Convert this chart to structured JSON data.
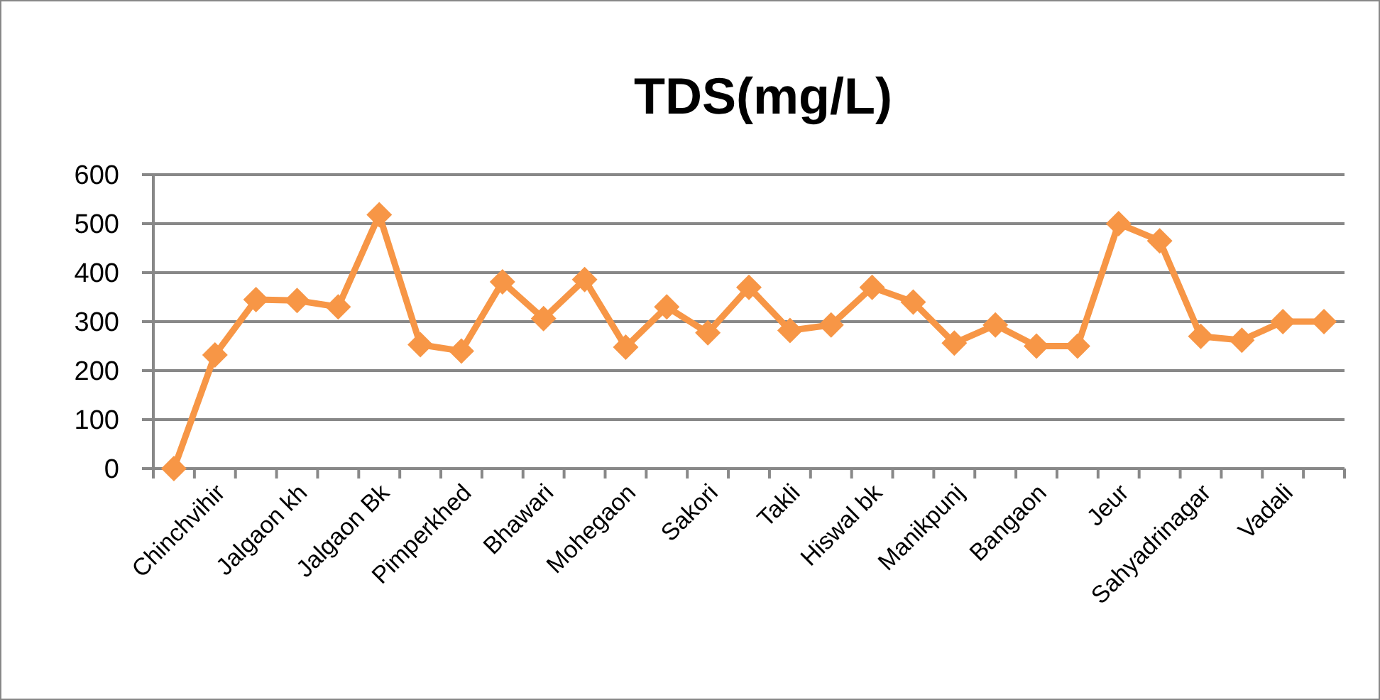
{
  "chart_data": {
    "type": "line",
    "title": "TDS(mg/L)",
    "categories": [
      null,
      "Chinchvihir",
      null,
      "Jalgaon kh",
      null,
      "Jalgaon Bk",
      null,
      "Pimperkhed",
      null,
      "Bhawari",
      null,
      "Mohegaon",
      null,
      "Sakori",
      null,
      "Takli",
      null,
      "Hiswal bk",
      null,
      "Manikpunj",
      null,
      "Bangaon",
      null,
      "Jeur",
      null,
      "Sahyadrinagar",
      null,
      "Vadali",
      null
    ],
    "series": [
      {
        "color": "#f79646",
        "values": [
          0,
          232,
          345,
          343,
          330,
          518,
          253,
          240,
          381,
          306,
          386,
          248,
          330,
          277,
          370,
          282,
          293,
          370,
          340,
          256,
          293,
          250,
          250,
          500,
          465,
          270,
          262,
          300,
          300
        ]
      }
    ],
    "ylim": [
      0,
      600
    ],
    "yticks": [
      0,
      100,
      200,
      300,
      400,
      500,
      600
    ],
    "grid": "y",
    "marker": "diamond",
    "line_style": "solid"
  }
}
